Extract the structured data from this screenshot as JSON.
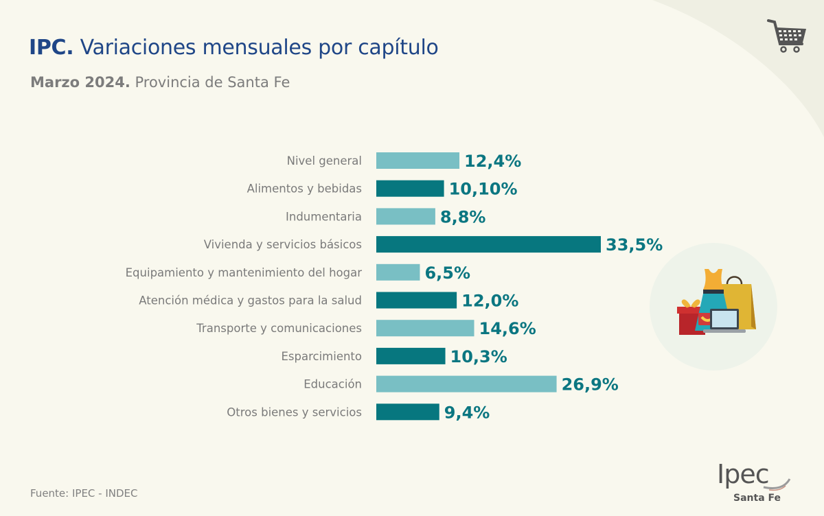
{
  "header": {
    "title_bold": "IPC.",
    "title_rest": " Variaciones mensuales por capítulo",
    "subtitle_bold": "Marzo 2024.",
    "subtitle_rest": " Provincia de Santa Fe"
  },
  "footer": {
    "source": "Fuente: IPEC - INDEC",
    "logo_text": "Ipec",
    "logo_subtext": "Santa Fe"
  },
  "icons": {
    "top_right": "shopping-cart-icon",
    "illustration": "shopping-items-illustration"
  },
  "colors": {
    "title": "#1f4687",
    "bar_light": "#79bfc4",
    "bar_dark": "#07777f",
    "value_text": "#0b7681",
    "background": "#f9f8ee",
    "background_corner": "#efefe3"
  },
  "chart_data": {
    "type": "bar",
    "orientation": "horizontal",
    "title": "IPC. Variaciones mensuales por capítulo",
    "subtitle": "Marzo 2024. Provincia de Santa Fe",
    "xlabel": "",
    "ylabel": "",
    "grid": false,
    "legend": "none",
    "categories": [
      "Nivel general",
      "Alimentos y bebidas",
      "Indumentaria",
      "Vivienda y servicios básicos",
      "Equipamiento y mantenimiento del hogar",
      "Atención médica y gastos para la salud",
      "Transporte y comunicaciones",
      "Esparcimiento",
      "Educación",
      "Otros bienes y servicios"
    ],
    "values": [
      12.4,
      10.1,
      8.8,
      33.5,
      6.5,
      12.0,
      14.6,
      10.3,
      26.9,
      9.4
    ],
    "value_labels": [
      "12,4%",
      "10,10%",
      "8,8%",
      "33,5%",
      "6,5%",
      "12,0%",
      "14,6%",
      "10,3%",
      "26,9%",
      "9,4%"
    ],
    "bar_styles": [
      "light",
      "dark",
      "light",
      "dark",
      "light",
      "dark",
      "light",
      "dark",
      "light",
      "dark"
    ],
    "unit": "%"
  }
}
